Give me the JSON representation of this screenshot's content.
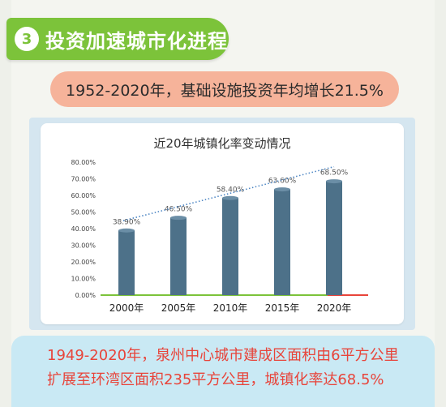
{
  "header": {
    "number": "3",
    "title": "投资加速城市化进程"
  },
  "highlight": {
    "text": "1952-2020年，基础设施投资年均增长21.5%"
  },
  "footer": {
    "line1": "1949-2020年，泉州中心城市建成区面积由6平方公里",
    "line2": "扩展至环湾区面积235平方公里，城镇化率达68.5%"
  },
  "colors": {
    "header_green": "#7cc33a",
    "pill_salmon": "#f6b39a",
    "bar": "#4d7189",
    "footer_text": "#e8443a",
    "footer_bg": "#c9e9f4"
  },
  "chart_data": {
    "type": "bar",
    "title": "近20年城镇化率变动情况",
    "categories": [
      "2000年",
      "2005年",
      "2010年",
      "2015年",
      "2020年"
    ],
    "values": [
      38.9,
      46.5,
      58.4,
      63.6,
      68.5
    ],
    "data_labels": [
      "38.90%",
      "46.50%",
      "58.40%",
      "63.60%",
      "68.50%"
    ],
    "y_ticks": [
      "0.00%",
      "10.00%",
      "20.00%",
      "30.00%",
      "40.00%",
      "50.00%",
      "60.00%",
      "70.00%",
      "80.00%"
    ],
    "ylim": [
      0,
      80
    ],
    "trendline": "linear dotted",
    "grid": false
  }
}
